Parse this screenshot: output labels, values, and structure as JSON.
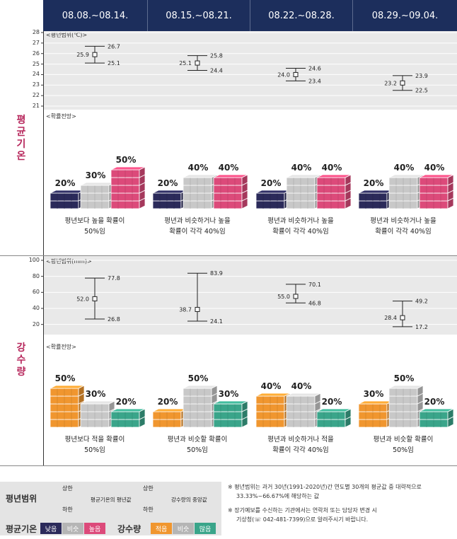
{
  "weeks": [
    "08.08.~08.14.",
    "08.15.~08.21.",
    "08.22.~08.28.",
    "08.29.~09.04."
  ],
  "temperature": {
    "section_label": "평균기온",
    "range_subtitle": "<평년범위(℃)>",
    "y_ticks": [
      "28",
      "27",
      "26",
      "25",
      "24",
      "23",
      "22",
      "21"
    ],
    "prob_subtitle": "<확률전망>",
    "descriptions": [
      [
        "평년보다 높을 확률이",
        "50%임"
      ],
      [
        "평년과 비슷하거나 높을",
        "확률이 각각 40%임"
      ],
      [
        "평년과 비슷하거나 높을",
        "확률이 각각 40%임"
      ],
      [
        "평년과 비슷하거나 높을",
        "확률이 각각 40%임"
      ]
    ]
  },
  "precipitation": {
    "section_label": "강수량",
    "range_subtitle": "<평년범위(mm)>",
    "y_ticks": [
      "100",
      "80",
      "60",
      "40",
      "20"
    ],
    "prob_subtitle": "<확률전망>",
    "descriptions": [
      [
        "평년보다 적을 확률이",
        "50%임"
      ],
      [
        "평년과 비슷할 확률이",
        "50%임"
      ],
      [
        "평년과 비슷하거나 적을",
        "확률이 각각 40%임"
      ],
      [
        "평년과 비슷할 확률이",
        "50%임"
      ]
    ]
  },
  "chart_data": [
    {
      "type": "scatter",
      "title": "<평년범위(℃)>",
      "categories": [
        "08.08.~08.14.",
        "08.15.~08.21.",
        "08.22.~08.28.",
        "08.29.~09.04."
      ],
      "ylim": [
        21,
        28
      ],
      "series": [
        {
          "name": "평균",
          "values": [
            25.9,
            25.1,
            24.0,
            23.2
          ]
        },
        {
          "name": "상한",
          "values": [
            26.7,
            25.8,
            24.6,
            23.9
          ]
        },
        {
          "name": "하한",
          "values": [
            25.1,
            24.4,
            23.4,
            22.5
          ]
        }
      ]
    },
    {
      "type": "bar",
      "title": "<확률전망>",
      "categories": [
        "08.08.~08.14.",
        "08.15.~08.21.",
        "08.22.~08.28.",
        "08.29.~09.04."
      ],
      "series": [
        {
          "name": "낮음",
          "values": [
            20,
            20,
            20,
            20
          ]
        },
        {
          "name": "비슷",
          "values": [
            30,
            40,
            40,
            40
          ]
        },
        {
          "name": "높음",
          "values": [
            50,
            40,
            40,
            40
          ]
        }
      ],
      "colors": [
        "#2b2a5a",
        "#c8c8c8",
        "#dc4a7a"
      ]
    },
    {
      "type": "scatter",
      "title": "<평년범위(mm)>",
      "categories": [
        "08.08.~08.14.",
        "08.15.~08.21.",
        "08.22.~08.28.",
        "08.29.~09.04."
      ],
      "ylim": [
        10,
        100
      ],
      "series": [
        {
          "name": "평균",
          "values": [
            52.0,
            38.7,
            55.0,
            28.4
          ]
        },
        {
          "name": "상한",
          "values": [
            77.8,
            83.9,
            70.1,
            49.2
          ]
        },
        {
          "name": "하한",
          "values": [
            26.8,
            24.1,
            46.8,
            17.2
          ]
        }
      ]
    },
    {
      "type": "bar",
      "title": "<확률전망>",
      "categories": [
        "08.08.~08.14.",
        "08.15.~08.21.",
        "08.22.~08.28.",
        "08.29.~09.04."
      ],
      "series": [
        {
          "name": "적음",
          "values": [
            50,
            20,
            40,
            30
          ]
        },
        {
          "name": "비슷",
          "values": [
            30,
            50,
            40,
            50
          ]
        },
        {
          "name": "많음",
          "values": [
            20,
            30,
            20,
            20
          ]
        }
      ],
      "colors": [
        "#f0962f",
        "#c8c8c8",
        "#3aa58a"
      ]
    }
  ],
  "legend": {
    "range_title": "평년범위",
    "upper": "상한",
    "lower": "하한",
    "temp_note": "평균기온의 평년값",
    "precip_note": "강수량의 중앙값",
    "temp_title": "평균기온",
    "temp_chips": [
      "낮음",
      "비슷",
      "높음"
    ],
    "precip_title": "강수량",
    "precip_chips": [
      "적음",
      "비슷",
      "많음"
    ]
  },
  "notes": [
    "※  평년범위는 과거 30년(1991-2020년)간 연도별 30개의 평균값 중 대략적으로",
    "33.33%~66.67%에 해당하는 값",
    "※  장기예보를 수신하는 기관에서는 연락처 또는 담당자 변경 시",
    "기상청(☏ 042-481-7399)으로 알려주시기 바랍니다."
  ]
}
